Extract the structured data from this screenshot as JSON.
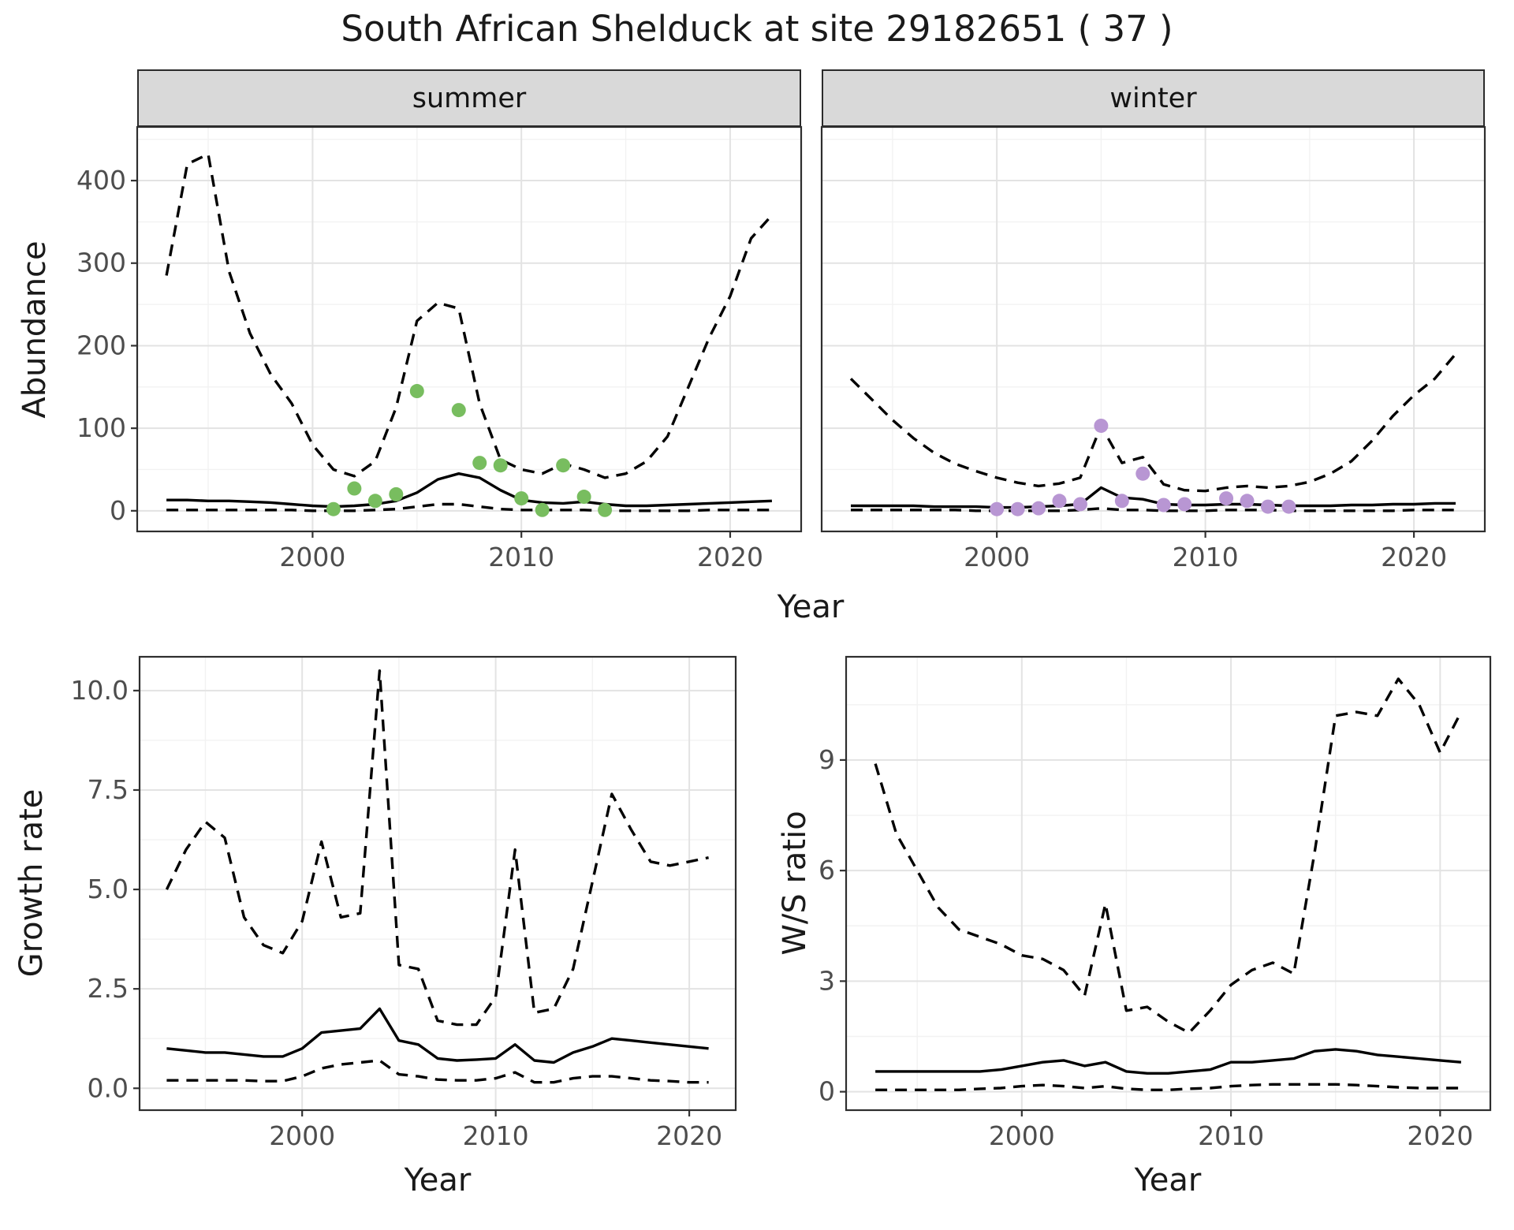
{
  "title": "South African Shelduck at site 29182651 ( 37 )",
  "colors": {
    "line": "#000000",
    "strip_background": "#d9d9d9",
    "summer_points": "#78bd5f",
    "winter_points": "#b896d3"
  },
  "chart_data": [
    {
      "type": "line",
      "panel": "abundance-summer",
      "facet": "summer",
      "ylabel": "Abundance",
      "xlabel": "Year",
      "xlim": [
        1991.6,
        2023.4
      ],
      "ylim": [
        -25,
        465
      ],
      "x_ticks": [
        2000,
        2010,
        2020
      ],
      "x_tick_labels": [
        "2000",
        "2010",
        "2020"
      ],
      "y_ticks": [
        0,
        100,
        200,
        300,
        400
      ],
      "y_tick_labels": [
        "0",
        "100",
        "200",
        "300",
        "400"
      ],
      "years": [
        1993,
        1994,
        1995,
        1996,
        1997,
        1998,
        1999,
        2000,
        2001,
        2002,
        2003,
        2004,
        2005,
        2006,
        2007,
        2008,
        2009,
        2010,
        2011,
        2012,
        2013,
        2014,
        2015,
        2016,
        2017,
        2018,
        2019,
        2020,
        2021,
        2022
      ],
      "series": [
        {
          "name": "upper-ci",
          "style": "dashed",
          "values": [
            285,
            420,
            432,
            290,
            215,
            165,
            130,
            80,
            50,
            42,
            60,
            125,
            230,
            252,
            245,
            130,
            62,
            50,
            45,
            57,
            50,
            40,
            45,
            60,
            90,
            150,
            210,
            260,
            330,
            358
          ]
        },
        {
          "name": "median",
          "style": "solid",
          "values": [
            13,
            13,
            12,
            12,
            11,
            10,
            8,
            6,
            5,
            6,
            8,
            12,
            22,
            38,
            45,
            40,
            25,
            13,
            10,
            9,
            11,
            8,
            6,
            6,
            7,
            8,
            9,
            10,
            11,
            12
          ]
        },
        {
          "name": "lower-ci",
          "style": "dashed",
          "values": [
            1,
            1,
            1,
            1,
            1,
            1,
            1,
            0,
            0,
            0,
            1,
            2,
            5,
            8,
            8,
            5,
            2,
            1,
            1,
            1,
            1,
            0,
            0,
            0,
            0,
            0,
            1,
            1,
            1,
            1
          ]
        }
      ],
      "points": {
        "name": "observed-counts-summer",
        "color": "#78bd5f",
        "x": [
          2001,
          2002,
          2003,
          2004,
          2005,
          2007,
          2008,
          2009,
          2010,
          2011,
          2012,
          2013,
          2014
        ],
        "y": [
          2,
          27,
          12,
          20,
          145,
          122,
          58,
          55,
          15,
          1,
          55,
          17,
          1
        ]
      }
    },
    {
      "type": "line",
      "panel": "abundance-winter",
      "facet": "winter",
      "ylabel": "Abundance",
      "xlabel": "Year",
      "xlim": [
        1991.6,
        2023.4
      ],
      "ylim": [
        -25,
        465
      ],
      "x_ticks": [
        2000,
        2010,
        2020
      ],
      "x_tick_labels": [
        "2000",
        "2010",
        "2020"
      ],
      "y_ticks": [
        0,
        100,
        200,
        300,
        400
      ],
      "y_tick_labels": [],
      "years": [
        1993,
        1994,
        1995,
        1996,
        1997,
        1998,
        1999,
        2000,
        2001,
        2002,
        2003,
        2004,
        2005,
        2006,
        2007,
        2008,
        2009,
        2010,
        2011,
        2012,
        2013,
        2014,
        2015,
        2016,
        2017,
        2018,
        2019,
        2020,
        2021,
        2022
      ],
      "series": [
        {
          "name": "upper-ci",
          "style": "dashed",
          "values": [
            160,
            135,
            110,
            88,
            70,
            57,
            48,
            40,
            34,
            30,
            33,
            40,
            103,
            58,
            65,
            32,
            25,
            24,
            28,
            30,
            28,
            30,
            35,
            45,
            60,
            85,
            115,
            140,
            160,
            190
          ]
        },
        {
          "name": "median",
          "style": "solid",
          "values": [
            6,
            6,
            6,
            6,
            5,
            5,
            5,
            4,
            4,
            5,
            6,
            8,
            28,
            16,
            14,
            8,
            7,
            7,
            8,
            8,
            7,
            6,
            6,
            6,
            7,
            7,
            8,
            8,
            9,
            9
          ]
        },
        {
          "name": "lower-ci",
          "style": "dashed",
          "values": [
            1,
            1,
            1,
            1,
            1,
            1,
            0,
            0,
            0,
            0,
            0,
            1,
            3,
            1,
            1,
            0,
            0,
            0,
            1,
            1,
            1,
            0,
            0,
            0,
            0,
            0,
            0,
            1,
            1,
            1
          ]
        }
      ],
      "points": {
        "name": "observed-counts-winter",
        "color": "#b896d3",
        "x": [
          2000,
          2001,
          2002,
          2003,
          2004,
          2005,
          2006,
          2007,
          2008,
          2009,
          2011,
          2012,
          2013,
          2014
        ],
        "y": [
          2,
          2,
          3,
          12,
          8,
          103,
          12,
          45,
          7,
          8,
          15,
          12,
          5,
          5
        ]
      }
    },
    {
      "type": "line",
      "panel": "growth",
      "facet": "",
      "ylabel": "Growth rate",
      "xlabel": "Year",
      "xlim": [
        1991.6,
        2022.4
      ],
      "ylim": [
        -0.55,
        10.85
      ],
      "x_ticks": [
        2000,
        2010,
        2020
      ],
      "x_tick_labels": [
        "2000",
        "2010",
        "2020"
      ],
      "y_ticks": [
        0,
        2.5,
        5,
        7.5,
        10
      ],
      "y_tick_labels": [
        "0.0",
        "2.5",
        "5.0",
        "7.5",
        "10.0"
      ],
      "years": [
        1993,
        1994,
        1995,
        1996,
        1997,
        1998,
        1999,
        2000,
        2001,
        2002,
        2003,
        2004,
        2005,
        2006,
        2007,
        2008,
        2009,
        2010,
        2011,
        2012,
        2013,
        2014,
        2015,
        2016,
        2017,
        2018,
        2019,
        2020,
        2021
      ],
      "series": [
        {
          "name": "upper-ci",
          "style": "dashed",
          "values": [
            5.0,
            6.0,
            6.7,
            6.3,
            4.3,
            3.6,
            3.4,
            4.2,
            6.2,
            4.3,
            4.4,
            10.5,
            3.1,
            3.0,
            1.7,
            1.6,
            1.6,
            2.3,
            6.0,
            1.9,
            2.0,
            3.0,
            5.2,
            7.4,
            6.5,
            5.7,
            5.6,
            5.7,
            5.8
          ]
        },
        {
          "name": "median",
          "style": "solid",
          "values": [
            1.0,
            0.95,
            0.9,
            0.9,
            0.85,
            0.8,
            0.8,
            1.0,
            1.4,
            1.45,
            1.5,
            2.0,
            1.2,
            1.1,
            0.75,
            0.7,
            0.72,
            0.75,
            1.1,
            0.7,
            0.65,
            0.9,
            1.05,
            1.25,
            1.2,
            1.15,
            1.1,
            1.05,
            1.0
          ]
        },
        {
          "name": "lower-ci",
          "style": "dashed",
          "values": [
            0.2,
            0.2,
            0.2,
            0.2,
            0.2,
            0.18,
            0.18,
            0.3,
            0.5,
            0.6,
            0.65,
            0.7,
            0.35,
            0.3,
            0.22,
            0.2,
            0.2,
            0.25,
            0.4,
            0.15,
            0.15,
            0.25,
            0.3,
            0.3,
            0.25,
            0.2,
            0.18,
            0.15,
            0.15
          ]
        }
      ]
    },
    {
      "type": "line",
      "panel": "ratio",
      "facet": "",
      "ylabel": "W/S ratio",
      "xlabel": "Year",
      "xlim": [
        1991.6,
        2022.4
      ],
      "ylim": [
        -0.5,
        11.8
      ],
      "x_ticks": [
        2000,
        2010,
        2020
      ],
      "x_tick_labels": [
        "2000",
        "2010",
        "2020"
      ],
      "y_ticks": [
        0,
        3,
        6,
        9
      ],
      "y_tick_labels": [
        "0",
        "3",
        "6",
        "9"
      ],
      "years": [
        1993,
        1994,
        1995,
        1996,
        1997,
        1998,
        1999,
        2000,
        2001,
        2002,
        2003,
        2004,
        2005,
        2006,
        2007,
        2008,
        2009,
        2010,
        2011,
        2012,
        2013,
        2014,
        2015,
        2016,
        2017,
        2018,
        2019,
        2020,
        2021
      ],
      "series": [
        {
          "name": "upper-ci",
          "style": "dashed",
          "values": [
            8.9,
            7.0,
            6.0,
            5.0,
            4.4,
            4.2,
            4.0,
            3.7,
            3.6,
            3.3,
            2.6,
            5.1,
            2.2,
            2.3,
            1.9,
            1.6,
            2.2,
            2.9,
            3.3,
            3.5,
            3.2,
            6.5,
            10.2,
            10.3,
            10.2,
            11.2,
            10.5,
            9.2,
            10.3
          ]
        },
        {
          "name": "median",
          "style": "solid",
          "values": [
            0.55,
            0.55,
            0.55,
            0.55,
            0.55,
            0.55,
            0.6,
            0.7,
            0.8,
            0.85,
            0.7,
            0.8,
            0.55,
            0.5,
            0.5,
            0.55,
            0.6,
            0.8,
            0.8,
            0.85,
            0.9,
            1.1,
            1.15,
            1.1,
            1.0,
            0.95,
            0.9,
            0.85,
            0.8
          ]
        },
        {
          "name": "lower-ci",
          "style": "dashed",
          "values": [
            0.05,
            0.05,
            0.05,
            0.05,
            0.05,
            0.08,
            0.1,
            0.15,
            0.18,
            0.15,
            0.1,
            0.15,
            0.08,
            0.05,
            0.05,
            0.08,
            0.1,
            0.15,
            0.18,
            0.2,
            0.2,
            0.2,
            0.2,
            0.18,
            0.15,
            0.12,
            0.1,
            0.1,
            0.1
          ]
        }
      ]
    }
  ]
}
